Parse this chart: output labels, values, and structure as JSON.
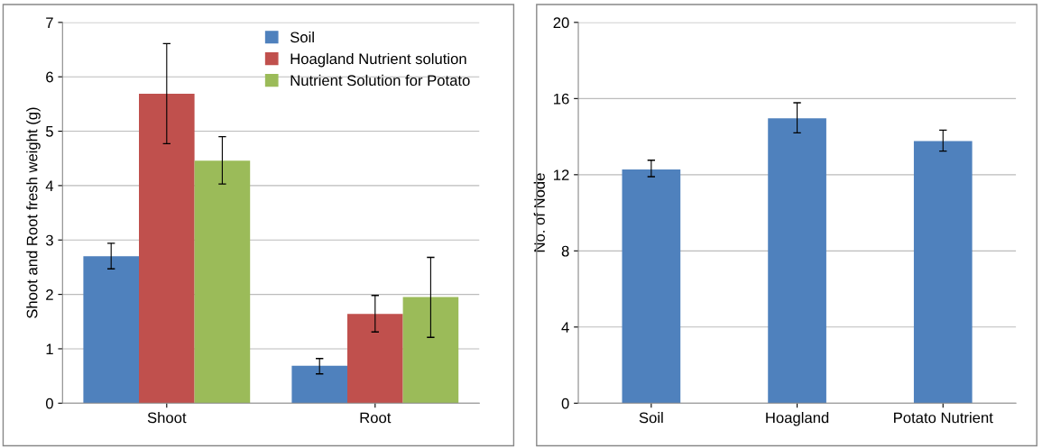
{
  "chart_data": [
    {
      "type": "bar",
      "ylabel": "Shoot and Root fresh weight (g)",
      "categories": [
        "Shoot",
        "Root"
      ],
      "series": [
        {
          "name": "Soil",
          "color": "#4f81bd",
          "values": [
            2.7,
            0.69
          ],
          "errors": [
            [
              2.47,
              2.94
            ],
            [
              0.54,
              0.82
            ]
          ]
        },
        {
          "name": "Hoagland Nutrient solution",
          "color": "#c0504d",
          "values": [
            5.69,
            1.64
          ],
          "errors": [
            [
              4.77,
              6.61
            ],
            [
              1.31,
              1.98
            ]
          ]
        },
        {
          "name": "Nutrient Solution for Potato",
          "color": "#9bbb59",
          "values": [
            4.46,
            1.95
          ],
          "errors": [
            [
              4.03,
              4.9
            ],
            [
              1.21,
              2.68
            ]
          ]
        }
      ],
      "ylim": [
        0,
        7
      ],
      "yticks": [
        0,
        1,
        2,
        3,
        4,
        5,
        6,
        7
      ],
      "grid": "y",
      "legend": "top right"
    },
    {
      "type": "bar",
      "ylabel": "No. of Node",
      "categories": [
        "Soil",
        "Hoagland",
        "Potato Nutrient"
      ],
      "series": [
        {
          "color": "#4f81bd",
          "values": [
            12.28,
            14.96,
            13.77
          ],
          "errors": [
            [
              11.9,
              12.76
            ],
            [
              14.2,
              15.78
            ],
            [
              13.24,
              14.34
            ]
          ]
        }
      ],
      "ylim": [
        0,
        20
      ],
      "yticks": [
        0,
        4,
        8,
        12,
        16,
        20
      ],
      "grid": "y",
      "legend": false
    }
  ]
}
